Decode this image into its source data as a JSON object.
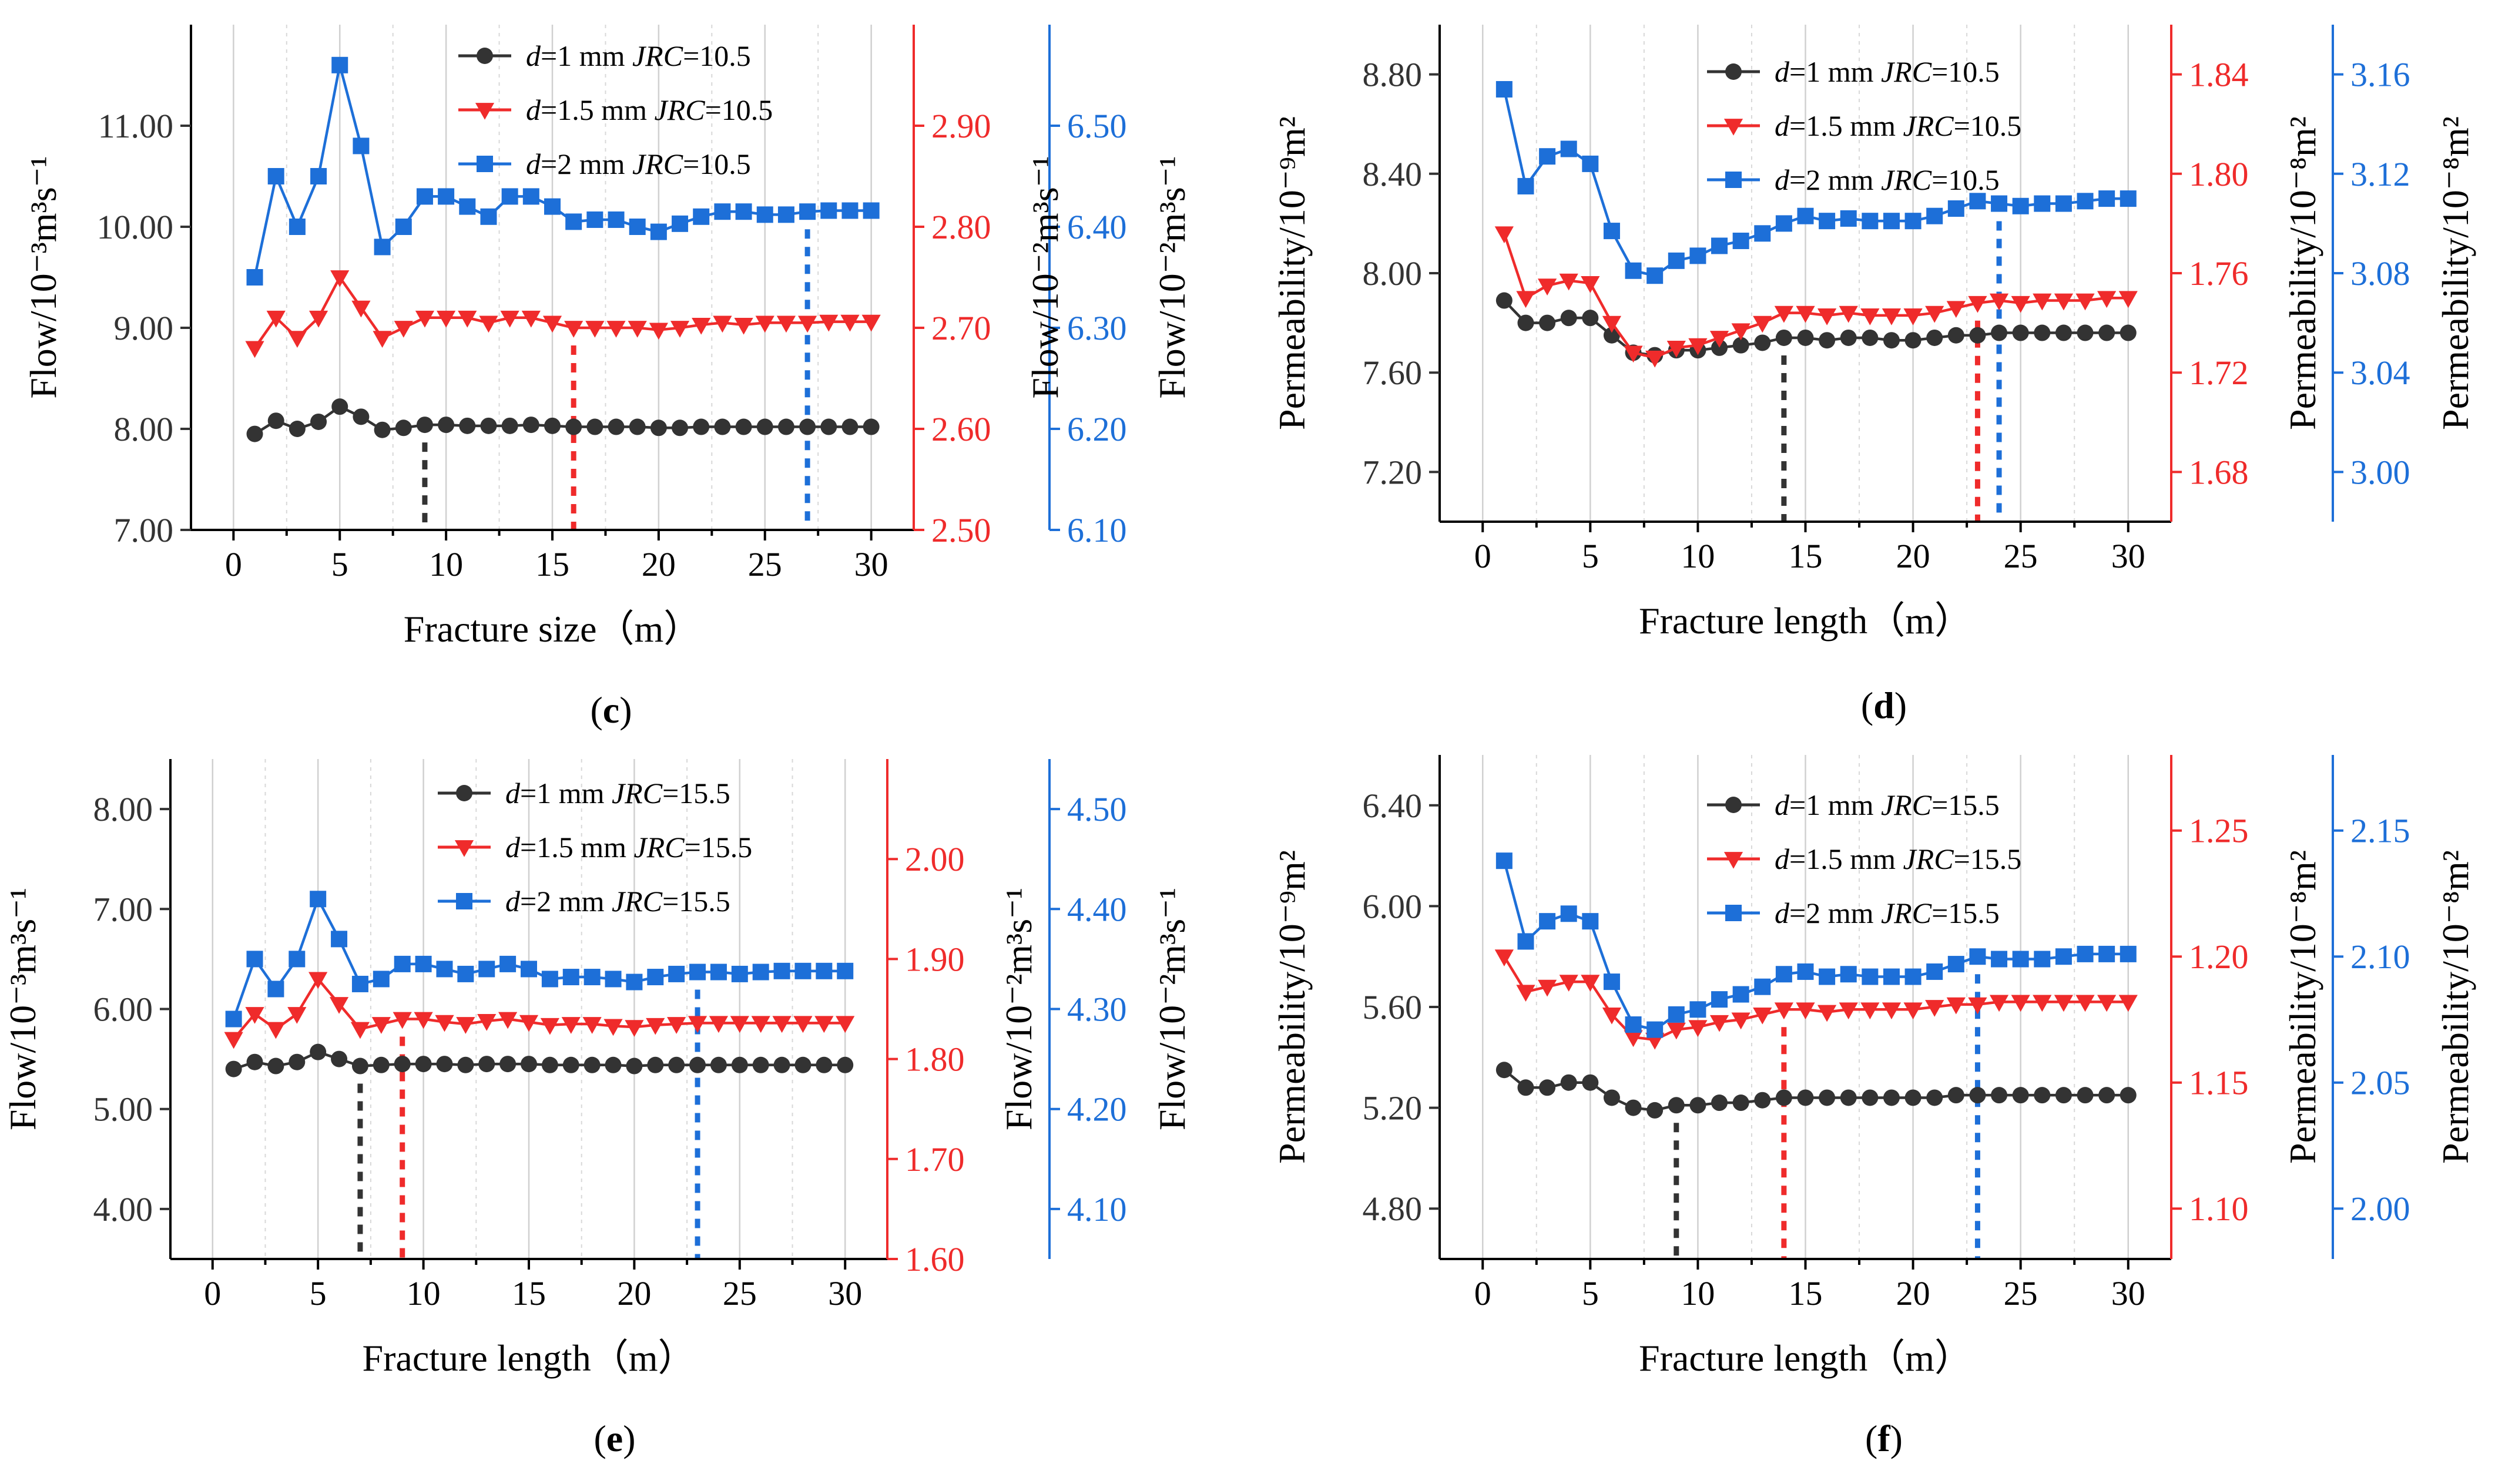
{
  "colors": {
    "black": "#333333",
    "red": "#ef2b2b",
    "blue": "#1d6fd8",
    "axis": "#000000"
  },
  "chart_data": [
    {
      "panel": "(c)",
      "type": "line",
      "xlabel": "Fracture size（m）",
      "ylabels": [
        "Flow/10⁻³m³s⁻¹",
        "Flow/10⁻²m³s⁻¹",
        "Flow/10⁻²m³s⁻¹"
      ],
      "xlim": [
        -2,
        32
      ],
      "xticks": [
        0,
        5,
        10,
        15,
        20,
        25,
        30
      ],
      "axes": [
        {
          "name": "left",
          "color": "black",
          "lim": [
            7.0,
            12.0
          ],
          "ticks": [
            7.0,
            8.0,
            9.0,
            10.0,
            11.0
          ],
          "tick_labels": [
            "7.00",
            "8.00",
            "9.00",
            "10.00",
            "11.00"
          ]
        },
        {
          "name": "right1",
          "color": "red",
          "lim": [
            2.5,
            3.0
          ],
          "ticks": [
            2.5,
            2.6,
            2.7,
            2.8,
            2.9
          ],
          "tick_labels": [
            "2.50",
            "2.60",
            "2.70",
            "2.80",
            "2.90"
          ]
        },
        {
          "name": "right2",
          "color": "blue",
          "lim": [
            6.1,
            6.6
          ],
          "ticks": [
            6.1,
            6.2,
            6.3,
            6.4,
            6.5
          ],
          "tick_labels": [
            "6.10",
            "6.20",
            "6.30",
            "6.40",
            "6.50"
          ]
        }
      ],
      "series": [
        {
          "name": "d=1 mm JRC=10.5",
          "d_value": "=1 mm ",
          "jrc_value": "=10.5",
          "color": "black",
          "axis": 0,
          "marker": "circle",
          "vline": 9,
          "values": [
            7.95,
            8.08,
            8.0,
            8.07,
            8.22,
            8.12,
            7.99,
            8.01,
            8.04,
            8.04,
            8.03,
            8.03,
            8.03,
            8.04,
            8.03,
            8.02,
            8.02,
            8.02,
            8.02,
            8.01,
            8.01,
            8.02,
            8.02,
            8.02,
            8.02,
            8.02,
            8.02,
            8.02,
            8.02,
            8.02
          ]
        },
        {
          "name": "d=1.5 mm JRC=10.5",
          "d_value": "=1.5 mm ",
          "jrc_value": "=10.5",
          "color": "red",
          "axis": 1,
          "marker": "triangle-down",
          "vline": 16,
          "values": [
            2.68,
            2.71,
            2.69,
            2.71,
            2.75,
            2.72,
            2.69,
            2.7,
            2.71,
            2.71,
            2.71,
            2.705,
            2.71,
            2.71,
            2.705,
            2.7,
            2.7,
            2.7,
            2.7,
            2.698,
            2.7,
            2.703,
            2.705,
            2.703,
            2.705,
            2.705,
            2.705,
            2.706,
            2.706,
            2.706
          ]
        },
        {
          "name": "d=2 mm JRC=10.5",
          "d_value": "=2 mm ",
          "jrc_value": "=10.5",
          "color": "blue",
          "axis": 2,
          "marker": "square",
          "vline": 27,
          "values": [
            6.35,
            6.45,
            6.4,
            6.45,
            6.56,
            6.48,
            6.38,
            6.4,
            6.43,
            6.43,
            6.42,
            6.41,
            6.43,
            6.43,
            6.42,
            6.405,
            6.407,
            6.407,
            6.4,
            6.395,
            6.403,
            6.41,
            6.415,
            6.415,
            6.412,
            6.412,
            6.415,
            6.416,
            6.416,
            6.416
          ]
        }
      ]
    },
    {
      "panel": "(d)",
      "type": "line",
      "xlabel": "Fracture length（m）",
      "ylabels": [
        "Permeability/10⁻⁹m²",
        "Permeability/10⁻⁸m²",
        "Permeability/10⁻⁸m²"
      ],
      "xlim": [
        -2,
        32
      ],
      "xticks": [
        0,
        5,
        10,
        15,
        20,
        25,
        30
      ],
      "axes": [
        {
          "name": "left",
          "color": "black",
          "lim": [
            7.0,
            9.0
          ],
          "ticks": [
            7.2,
            7.6,
            8.0,
            8.4,
            8.8
          ],
          "tick_labels": [
            "7.20",
            "7.60",
            "8.00",
            "8.40",
            "8.80"
          ]
        },
        {
          "name": "right1",
          "color": "red",
          "lim": [
            1.66,
            1.86
          ],
          "ticks": [
            1.68,
            1.72,
            1.76,
            1.8,
            1.84
          ],
          "tick_labels": [
            "1.68",
            "1.72",
            "1.76",
            "1.80",
            "1.84"
          ]
        },
        {
          "name": "right2",
          "color": "blue",
          "lim": [
            2.98,
            3.18
          ],
          "ticks": [
            3.0,
            3.04,
            3.08,
            3.12,
            3.16
          ],
          "tick_labels": [
            "3.00",
            "3.04",
            "3.08",
            "3.12",
            "3.16"
          ]
        }
      ],
      "series": [
        {
          "name": "d=1 mm JRC=10.5",
          "d_value": "=1 mm ",
          "jrc_value": "=10.5",
          "color": "black",
          "axis": 0,
          "marker": "circle",
          "vline": 14,
          "values": [
            7.89,
            7.8,
            7.8,
            7.82,
            7.82,
            7.75,
            7.68,
            7.67,
            7.69,
            7.69,
            7.7,
            7.71,
            7.72,
            7.74,
            7.74,
            7.73,
            7.74,
            7.74,
            7.73,
            7.73,
            7.74,
            7.75,
            7.75,
            7.76,
            7.76,
            7.76,
            7.76,
            7.76,
            7.76,
            7.76
          ]
        },
        {
          "name": "d=1.5 mm JRC=10.5",
          "d_value": "=1.5 mm ",
          "jrc_value": "=10.5",
          "color": "red",
          "axis": 1,
          "marker": "triangle-down",
          "vline": 23,
          "values": [
            1.776,
            1.75,
            1.755,
            1.757,
            1.756,
            1.74,
            1.728,
            1.726,
            1.73,
            1.731,
            1.734,
            1.737,
            1.74,
            1.744,
            1.744,
            1.743,
            1.744,
            1.743,
            1.743,
            1.743,
            1.744,
            1.746,
            1.748,
            1.749,
            1.748,
            1.749,
            1.749,
            1.749,
            1.75,
            1.75
          ]
        },
        {
          "name": "d=2 mm JRC=10.5",
          "d_value": "=2 mm ",
          "jrc_value": "=10.5",
          "color": "blue",
          "axis": 2,
          "marker": "square",
          "vline": 24,
          "values": [
            3.154,
            3.115,
            3.127,
            3.13,
            3.124,
            3.097,
            3.081,
            3.079,
            3.085,
            3.087,
            3.091,
            3.093,
            3.096,
            3.1,
            3.103,
            3.101,
            3.102,
            3.101,
            3.101,
            3.101,
            3.103,
            3.106,
            3.109,
            3.108,
            3.107,
            3.108,
            3.108,
            3.109,
            3.11,
            3.11
          ]
        }
      ]
    },
    {
      "panel": "(e)",
      "type": "line",
      "xlabel": "Fracture length（m）",
      "ylabels": [
        "Flow/10⁻³m³s⁻¹",
        "Flow/10⁻²m³s⁻¹",
        "Flow/10⁻²m³s⁻¹"
      ],
      "xlim": [
        -2,
        32
      ],
      "xticks": [
        0,
        5,
        10,
        15,
        20,
        25,
        30
      ],
      "axes": [
        {
          "name": "left",
          "color": "black",
          "lim": [
            3.5,
            8.5
          ],
          "ticks": [
            4.0,
            5.0,
            6.0,
            7.0,
            8.0
          ],
          "tick_labels": [
            "4.00",
            "5.00",
            "6.00",
            "7.00",
            "8.00"
          ]
        },
        {
          "name": "right1",
          "color": "red",
          "lim": [
            1.6,
            2.1
          ],
          "ticks": [
            1.6,
            1.7,
            1.8,
            1.9,
            2.0
          ],
          "tick_labels": [
            "1.60",
            "1.70",
            "1.80",
            "1.90",
            "2.00"
          ]
        },
        {
          "name": "right2",
          "color": "blue",
          "lim": [
            4.05,
            4.55
          ],
          "ticks": [
            4.1,
            4.2,
            4.3,
            4.4,
            4.5
          ],
          "tick_labels": [
            "4.10",
            "4.20",
            "4.30",
            "4.40",
            "4.50"
          ]
        }
      ],
      "series": [
        {
          "name": "d=1 mm JRC=15.5",
          "d_value": "=1 mm ",
          "jrc_value": "=15.5",
          "color": "black",
          "axis": 0,
          "marker": "circle",
          "vline": 7,
          "values": [
            5.4,
            5.47,
            5.43,
            5.47,
            5.57,
            5.5,
            5.43,
            5.44,
            5.45,
            5.45,
            5.45,
            5.44,
            5.45,
            5.45,
            5.45,
            5.44,
            5.44,
            5.44,
            5.44,
            5.43,
            5.44,
            5.44,
            5.44,
            5.44,
            5.44,
            5.44,
            5.44,
            5.44,
            5.44,
            5.44
          ]
        },
        {
          "name": "d=1.5 mm JRC=15.5",
          "d_value": "=1.5 mm ",
          "jrc_value": "=15.5",
          "color": "red",
          "axis": 1,
          "marker": "triangle-down",
          "vline": 9,
          "values": [
            1.82,
            1.845,
            1.83,
            1.845,
            1.88,
            1.855,
            1.83,
            1.835,
            1.84,
            1.84,
            1.837,
            1.835,
            1.838,
            1.84,
            1.837,
            1.834,
            1.835,
            1.835,
            1.833,
            1.832,
            1.834,
            1.835,
            1.836,
            1.836,
            1.836,
            1.836,
            1.836,
            1.836,
            1.836,
            1.836
          ]
        },
        {
          "name": "d=2 mm JRC=15.5",
          "d_value": "=2 mm ",
          "jrc_value": "=15.5",
          "color": "blue",
          "axis": 2,
          "marker": "square",
          "vline": 23,
          "values": [
            4.29,
            4.35,
            4.32,
            4.35,
            4.41,
            4.37,
            4.325,
            4.33,
            4.345,
            4.345,
            4.34,
            4.335,
            4.34,
            4.345,
            4.34,
            4.33,
            4.332,
            4.332,
            4.33,
            4.327,
            4.332,
            4.335,
            4.337,
            4.337,
            4.335,
            4.337,
            4.338,
            4.338,
            4.338,
            4.338
          ]
        }
      ]
    },
    {
      "panel": "(f)",
      "type": "line",
      "xlabel": "Fracture length（m）",
      "ylabels": [
        "Permeability/10⁻⁹m²",
        "Permeability/10⁻⁸m²",
        "Permeability/10⁻⁸m²"
      ],
      "xlim": [
        -2,
        32
      ],
      "xticks": [
        0,
        5,
        10,
        15,
        20,
        25,
        30
      ],
      "axes": [
        {
          "name": "left",
          "color": "black",
          "lim": [
            4.6,
            6.6
          ],
          "ticks": [
            4.8,
            5.2,
            5.6,
            6.0,
            6.4
          ],
          "tick_labels": [
            "4.80",
            "5.20",
            "5.60",
            "6.00",
            "6.40"
          ]
        },
        {
          "name": "right1",
          "color": "red",
          "lim": [
            1.08,
            1.28
          ],
          "ticks": [
            1.1,
            1.15,
            1.2,
            1.25
          ],
          "tick_labels": [
            "1.10",
            "1.15",
            "1.20",
            "1.25"
          ]
        },
        {
          "name": "right2",
          "color": "blue",
          "lim": [
            1.98,
            2.18
          ],
          "ticks": [
            2.0,
            2.05,
            2.1,
            2.15
          ],
          "tick_labels": [
            "2.00",
            "2.05",
            "2.10",
            "2.15"
          ]
        }
      ],
      "series": [
        {
          "name": "d=1 mm JRC=15.5",
          "d_value": "=1 mm ",
          "jrc_value": "=15.5",
          "color": "black",
          "axis": 0,
          "marker": "circle",
          "vline": 9,
          "values": [
            5.35,
            5.28,
            5.28,
            5.3,
            5.3,
            5.24,
            5.2,
            5.19,
            5.21,
            5.21,
            5.22,
            5.22,
            5.23,
            5.24,
            5.24,
            5.24,
            5.24,
            5.24,
            5.24,
            5.24,
            5.24,
            5.25,
            5.25,
            5.25,
            5.25,
            5.25,
            5.25,
            5.25,
            5.25,
            5.25
          ]
        },
        {
          "name": "d=1.5 mm JRC=15.5",
          "d_value": "=1.5 mm ",
          "jrc_value": "=15.5",
          "color": "red",
          "axis": 1,
          "marker": "triangle-down",
          "vline": 14,
          "values": [
            1.2,
            1.186,
            1.188,
            1.19,
            1.19,
            1.177,
            1.168,
            1.167,
            1.171,
            1.172,
            1.174,
            1.175,
            1.177,
            1.179,
            1.179,
            1.178,
            1.179,
            1.179,
            1.179,
            1.179,
            1.18,
            1.181,
            1.181,
            1.182,
            1.182,
            1.182,
            1.182,
            1.182,
            1.182,
            1.182
          ]
        },
        {
          "name": "d=2 mm JRC=15.5",
          "d_value": "=2 mm ",
          "jrc_value": "=15.5",
          "color": "blue",
          "axis": 2,
          "marker": "square",
          "vline": 23,
          "values": [
            2.138,
            2.106,
            2.114,
            2.117,
            2.114,
            2.09,
            2.073,
            2.071,
            2.077,
            2.079,
            2.083,
            2.085,
            2.088,
            2.093,
            2.094,
            2.092,
            2.093,
            2.092,
            2.092,
            2.092,
            2.094,
            2.097,
            2.1,
            2.099,
            2.099,
            2.099,
            2.1,
            2.101,
            2.101,
            2.101
          ]
        }
      ]
    }
  ]
}
